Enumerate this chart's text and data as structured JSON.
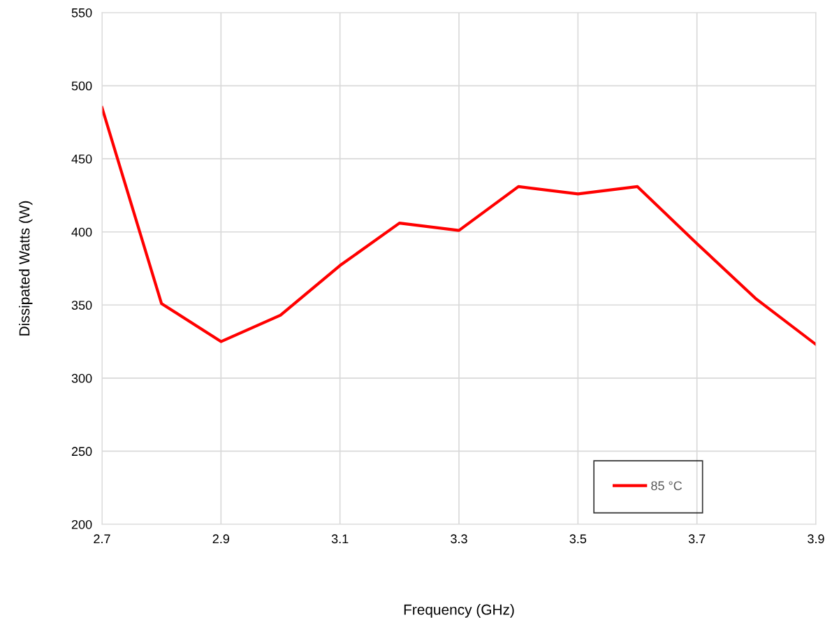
{
  "chart_data": {
    "type": "line",
    "xlabel": "Frequency (GHz)",
    "ylabel": "Dissipated Watts (W)",
    "x": [
      2.7,
      2.8,
      2.9,
      3.0,
      3.1,
      3.2,
      3.3,
      3.4,
      3.5,
      3.6,
      3.7,
      3.8,
      3.9
    ],
    "series": [
      {
        "name": "85 °C",
        "color": "#ff0000",
        "values": [
          485,
          351,
          325,
          343,
          377,
          406,
          401,
          431,
          426,
          431,
          392,
          354,
          323
        ]
      }
    ],
    "xlim": [
      2.7,
      3.9
    ],
    "xticks": [
      {
        "value": 2.7,
        "label": "2.7"
      },
      {
        "value": 2.9,
        "label": "2.9"
      },
      {
        "value": 3.1,
        "label": "3.1"
      },
      {
        "value": 3.3,
        "label": "3.3"
      },
      {
        "value": 3.5,
        "label": "3.5"
      },
      {
        "value": 3.7,
        "label": "3.7"
      },
      {
        "value": 3.9,
        "label": "3.9"
      }
    ],
    "ylim": [
      200,
      550
    ],
    "yticks": [
      200,
      250,
      300,
      350,
      400,
      450,
      500,
      550
    ],
    "grid": true,
    "legend": "bottom right",
    "marker": "none",
    "line_style": "solid"
  }
}
